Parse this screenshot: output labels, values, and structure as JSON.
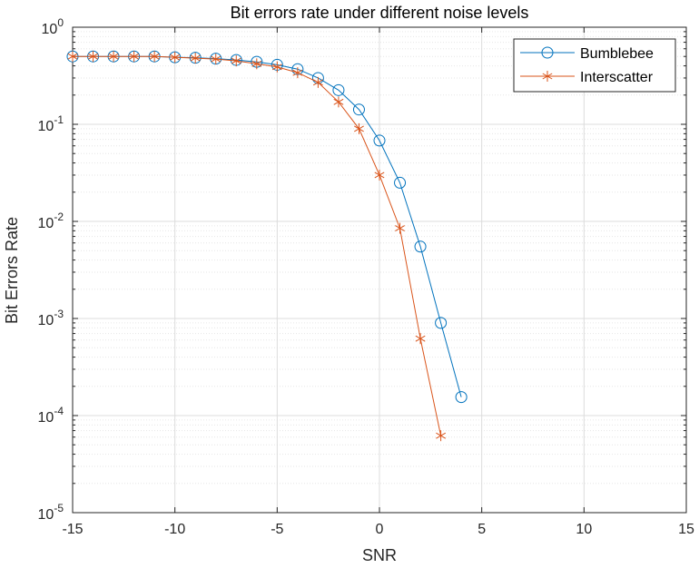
{
  "chart_data": {
    "type": "line",
    "title": "Bit errors rate under different noise levels",
    "xlabel": "SNR",
    "ylabel": "Bit Errors Rate",
    "xlim": [
      -15,
      15
    ],
    "ylim": [
      1e-05,
      1
    ],
    "yscale": "log",
    "x_ticks": [
      -15,
      -10,
      -5,
      0,
      5,
      10,
      15
    ],
    "y_ticks": [
      {
        "base": "10",
        "exp": "0",
        "value": 1
      },
      {
        "base": "10",
        "exp": "-1",
        "value": 0.1
      },
      {
        "base": "10",
        "exp": "-2",
        "value": 0.01
      },
      {
        "base": "10",
        "exp": "-3",
        "value": 0.001
      },
      {
        "base": "10",
        "exp": "-4",
        "value": 0.0001
      },
      {
        "base": "10",
        "exp": "-5",
        "value": 1e-05
      }
    ],
    "grid": true,
    "legend_position": "top-right",
    "series": [
      {
        "name": "Bumblebee",
        "color": "#0072BD",
        "marker": "circle",
        "x": [
          -15,
          -14,
          -13,
          -12,
          -11,
          -10,
          -9,
          -8,
          -7,
          -6,
          -5,
          -4,
          -3,
          -2,
          -1,
          0,
          1,
          2,
          3,
          4
        ],
        "y": [
          0.5,
          0.5,
          0.5,
          0.5,
          0.5,
          0.49,
          0.485,
          0.475,
          0.46,
          0.44,
          0.41,
          0.37,
          0.3,
          0.225,
          0.142,
          0.068,
          0.025,
          0.0055,
          0.0009,
          0.000155
        ]
      },
      {
        "name": "Interscatter",
        "color": "#D95319",
        "marker": "star",
        "x": [
          -15,
          -14,
          -13,
          -12,
          -11,
          -10,
          -9,
          -8,
          -7,
          -6,
          -5,
          -4,
          -3,
          -2,
          -1,
          0,
          1,
          2,
          3
        ],
        "y": [
          0.5,
          0.5,
          0.5,
          0.5,
          0.5,
          0.49,
          0.48,
          0.47,
          0.45,
          0.42,
          0.39,
          0.34,
          0.27,
          0.17,
          0.09,
          0.03,
          0.0085,
          0.00062,
          6.2e-05
        ]
      }
    ]
  }
}
